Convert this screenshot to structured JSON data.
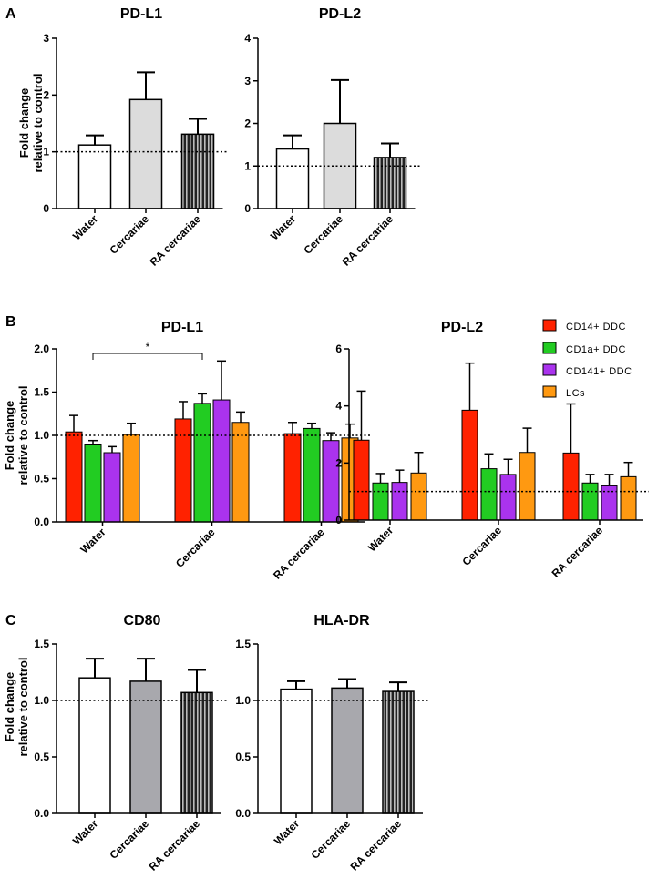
{
  "panel_letters": [
    "A",
    "B",
    "C"
  ],
  "y_label_line1": "Fold change",
  "y_label_line2": "relative to control",
  "legend": {
    "items": [
      {
        "label": "CD14+ DDC",
        "color": "#ff2200"
      },
      {
        "label": "CD1a+ DDC",
        "color": "#22cc22"
      },
      {
        "label": "CD141+ DDC",
        "color": "#aa33ee"
      },
      {
        "label": "LCs",
        "color": "#ff9911"
      }
    ]
  },
  "chart_data": [
    {
      "id": "A-PD-L1",
      "type": "bar",
      "title": "PD-L1",
      "categories": [
        "Water",
        "Cercariae",
        "RA cercariae"
      ],
      "values": [
        1.12,
        1.92,
        1.31
      ],
      "errors": [
        0.17,
        0.48,
        0.27
      ],
      "fills": [
        "white",
        "lightgray",
        "striped"
      ],
      "ylim": [
        0,
        3
      ],
      "yticks": [
        0,
        1,
        2,
        3
      ],
      "ytick_labels": [
        "0",
        "1",
        "2",
        "3"
      ],
      "reference_line": 1,
      "ylabel": "Fold change relative to control"
    },
    {
      "id": "A-PD-L2",
      "type": "bar",
      "title": "PD-L2",
      "categories": [
        "Water",
        "Cercariae",
        "RA cercariae"
      ],
      "values": [
        1.4,
        2.0,
        1.2
      ],
      "errors": [
        0.32,
        1.02,
        0.33
      ],
      "fills": [
        "white",
        "lightgray",
        "striped"
      ],
      "ylim": [
        0,
        4
      ],
      "yticks": [
        0,
        1,
        2,
        3,
        4
      ],
      "ytick_labels": [
        "0",
        "1",
        "2",
        "3",
        "4"
      ],
      "reference_line": 1,
      "ylabel": ""
    },
    {
      "id": "B-PD-L1",
      "type": "bar",
      "title": "PD-L1",
      "categories": [
        "Water",
        "Cercariae",
        "RA cercariae"
      ],
      "series": [
        {
          "name": "CD14+ DDC",
          "values": [
            1.04,
            1.19,
            1.02
          ],
          "errors": [
            0.19,
            0.2,
            0.13
          ]
        },
        {
          "name": "CD1a+ DDC",
          "values": [
            0.9,
            1.37,
            1.08
          ],
          "errors": [
            0.04,
            0.11,
            0.06
          ]
        },
        {
          "name": "CD141+ DDC",
          "values": [
            0.8,
            1.41,
            0.94
          ],
          "errors": [
            0.07,
            0.45,
            0.09
          ]
        },
        {
          "name": "LCs",
          "values": [
            1.01,
            1.15,
            0.97
          ],
          "errors": [
            0.13,
            0.12,
            0.16
          ]
        }
      ],
      "ylim": [
        0,
        2.0
      ],
      "yticks": [
        0,
        0.5,
        1.0,
        1.5,
        2.0
      ],
      "ytick_labels": [
        "0.0",
        "0.5",
        "1.0",
        "1.5",
        "2.0"
      ],
      "reference_line": 1.0,
      "ylabel": "Fold change relative to control",
      "significance": {
        "from": "Water",
        "to": "Cercariae",
        "label": "*"
      }
    },
    {
      "id": "B-PD-L2",
      "type": "bar",
      "title": "PD-L2",
      "categories": [
        "Water",
        "Cercariae",
        "RA cercariae"
      ],
      "series": [
        {
          "name": "CD14+ DDC",
          "values": [
            2.8,
            3.85,
            2.35
          ],
          "errors": [
            1.72,
            1.65,
            1.72
          ]
        },
        {
          "name": "CD1a+ DDC",
          "values": [
            1.3,
            1.8,
            1.3
          ],
          "errors": [
            0.33,
            0.52,
            0.3
          ]
        },
        {
          "name": "CD141+ DDC",
          "values": [
            1.32,
            1.6,
            1.2
          ],
          "errors": [
            0.43,
            0.53,
            0.4
          ]
        },
        {
          "name": "LCs",
          "values": [
            1.65,
            2.37,
            1.52
          ],
          "errors": [
            0.72,
            0.85,
            0.5
          ]
        }
      ],
      "ylim": [
        0,
        6
      ],
      "yticks": [
        0,
        2,
        4,
        6
      ],
      "ytick_labels": [
        "0",
        "2",
        "4",
        "6"
      ],
      "reference_line": 1,
      "ylabel": ""
    },
    {
      "id": "C-CD80",
      "type": "bar",
      "title": "CD80",
      "categories": [
        "Water",
        "Cercariae",
        "RA cercariae"
      ],
      "values": [
        1.2,
        1.17,
        1.07
      ],
      "errors": [
        0.17,
        0.2,
        0.2
      ],
      "fills": [
        "white",
        "gray",
        "striped"
      ],
      "ylim": [
        0,
        1.5
      ],
      "yticks": [
        0,
        0.5,
        1.0,
        1.5
      ],
      "ytick_labels": [
        "0.0",
        "0.5",
        "1.0",
        "1.5"
      ],
      "reference_line": 1.0,
      "ylabel": "Fold change relative to control"
    },
    {
      "id": "C-HLA-DR",
      "type": "bar",
      "title": "HLA-DR",
      "categories": [
        "Water",
        "Cercariae",
        "RA cercariae"
      ],
      "values": [
        1.1,
        1.11,
        1.08
      ],
      "errors": [
        0.07,
        0.08,
        0.08
      ],
      "fills": [
        "white",
        "gray",
        "striped"
      ],
      "ylim": [
        0,
        1.5
      ],
      "yticks": [
        0,
        0.5,
        1.0,
        1.5
      ],
      "ytick_labels": [
        "0.0",
        "0.5",
        "1.0",
        "1.5"
      ],
      "reference_line": 1.0,
      "ylabel": ""
    }
  ]
}
